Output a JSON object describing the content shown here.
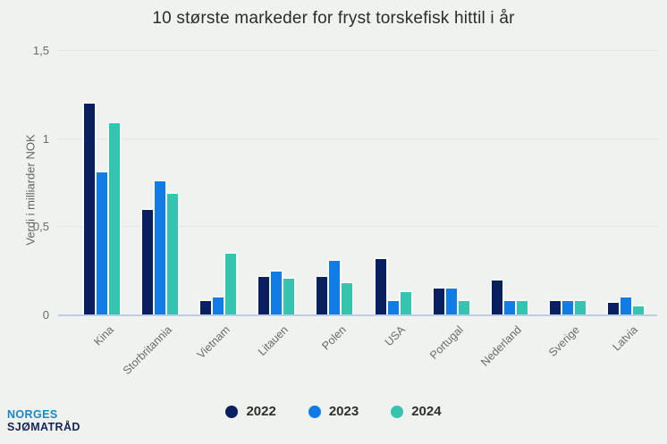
{
  "chart_data": {
    "type": "bar",
    "title": "10 største markeder for fryst torskefisk hittil i år",
    "xlabel": "",
    "ylabel": "Verdi i milliarder NOK",
    "ylim": [
      0,
      1.5
    ],
    "yticks": [
      {
        "value": 1.5,
        "label": "1,5"
      },
      {
        "value": 1.0,
        "label": "1"
      },
      {
        "value": 0.5,
        "label": "0,5"
      },
      {
        "value": 0.0,
        "label": "0"
      }
    ],
    "grid": "horizontal",
    "legend_position": "bottom",
    "categories": [
      "Kina",
      "Storbritannia",
      "Vietnam",
      "Litauen",
      "Polen",
      "USA",
      "Portugal",
      "Nederland",
      "Sverige",
      "Latvia"
    ],
    "series": [
      {
        "name": "2022",
        "color": "#0a1f5f",
        "values": [
          1.2,
          0.6,
          0.08,
          0.22,
          0.22,
          0.32,
          0.15,
          0.2,
          0.08,
          0.07
        ]
      },
      {
        "name": "2023",
        "color": "#107de6",
        "values": [
          0.81,
          0.76,
          0.1,
          0.25,
          0.31,
          0.08,
          0.15,
          0.08,
          0.08,
          0.1
        ]
      },
      {
        "name": "2024",
        "color": "#35c4b0",
        "values": [
          1.09,
          0.69,
          0.35,
          0.21,
          0.18,
          0.13,
          0.08,
          0.08,
          0.08,
          0.05
        ]
      }
    ]
  },
  "branding": {
    "line1": "NORGES",
    "line2": "SJØMATRÅD"
  },
  "colors": {
    "background": "#f0f2ef",
    "gridline": "#e4e6e2",
    "axis_line": "#c0cbe6",
    "title_text": "#2c2c2c",
    "tick_text": "#6b6b6b",
    "brand_blue": "#1a87c8",
    "brand_navy": "#13265c"
  }
}
